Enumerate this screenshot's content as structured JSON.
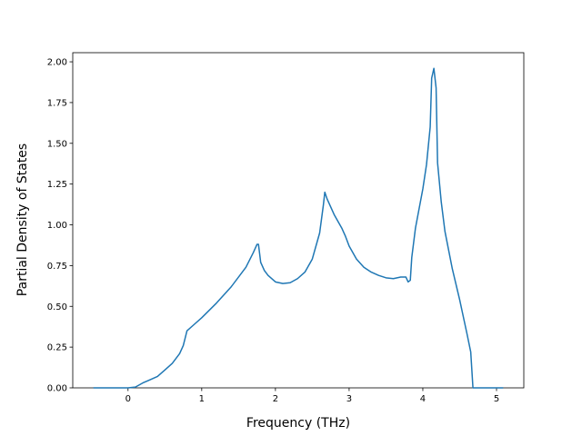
{
  "chart_data": {
    "type": "line",
    "xlabel": "Frequency (THz)",
    "ylabel": "Partial Density of States",
    "x": [
      -0.47,
      0,
      0.1,
      0.2,
      0.3,
      0.4,
      0.5,
      0.6,
      0.7,
      0.75,
      0.8,
      0.9,
      1.0,
      1.2,
      1.4,
      1.6,
      1.7,
      1.75,
      1.77,
      1.8,
      1.85,
      1.9,
      2.0,
      2.1,
      2.2,
      2.3,
      2.4,
      2.5,
      2.6,
      2.65,
      2.67,
      2.7,
      2.8,
      2.9,
      2.95,
      3.0,
      3.1,
      3.2,
      3.3,
      3.4,
      3.5,
      3.6,
      3.7,
      3.77,
      3.8,
      3.83,
      3.85,
      3.9,
      4.0,
      4.05,
      4.1,
      4.12,
      4.15,
      4.18,
      4.2,
      4.25,
      4.3,
      4.4,
      4.5,
      4.6,
      4.65,
      4.68,
      5.0,
      5.09
    ],
    "series": [
      {
        "color": "#1f77b4",
        "values": [
          0,
          0,
          0.005,
          0.03,
          0.05,
          0.07,
          0.11,
          0.15,
          0.21,
          0.26,
          0.35,
          0.39,
          0.43,
          0.52,
          0.62,
          0.74,
          0.83,
          0.88,
          0.88,
          0.77,
          0.72,
          0.69,
          0.65,
          0.64,
          0.645,
          0.67,
          0.71,
          0.79,
          0.95,
          1.12,
          1.2,
          1.16,
          1.06,
          0.98,
          0.93,
          0.87,
          0.79,
          0.74,
          0.71,
          0.69,
          0.675,
          0.67,
          0.68,
          0.68,
          0.65,
          0.66,
          0.8,
          0.98,
          1.22,
          1.37,
          1.6,
          1.9,
          1.96,
          1.84,
          1.38,
          1.14,
          0.96,
          0.73,
          0.54,
          0.33,
          0.22,
          0,
          0,
          0
        ]
      }
    ],
    "xlim": [
      -0.75,
      5.37
    ],
    "ylim": [
      0,
      2.056
    ],
    "xticks": [
      0,
      1,
      2,
      3,
      4,
      5
    ],
    "yticks": [
      {
        "value": 0,
        "label": "0.00"
      },
      {
        "value": 0.25,
        "label": "0.25"
      },
      {
        "value": 0.5,
        "label": "0.50"
      },
      {
        "value": 0.75,
        "label": "0.75"
      },
      {
        "value": 1,
        "label": "1.00"
      },
      {
        "value": 1.25,
        "label": "1.25"
      },
      {
        "value": 1.5,
        "label": "1.50"
      },
      {
        "value": 1.75,
        "label": "1.75"
      },
      {
        "value": 2,
        "label": "2.00"
      }
    ],
    "grid": false
  }
}
